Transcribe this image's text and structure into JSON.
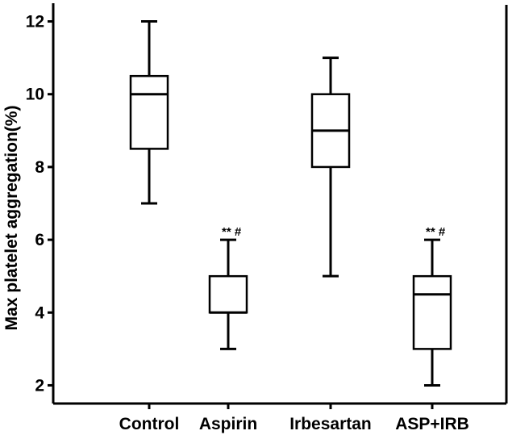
{
  "chart_data": {
    "type": "boxplot",
    "title": "",
    "xlabel": "",
    "ylabel": "Max platelet aggregation(%)",
    "ylim": [
      1.5,
      12.5
    ],
    "yticks": [
      2,
      4,
      6,
      8,
      10,
      12
    ],
    "grid": false,
    "legend": "none",
    "categories": [
      "Control",
      "Aspirin",
      "Irbesartan",
      "ASP+IRB"
    ],
    "boxes": [
      {
        "category": "Control",
        "min": 7,
        "q1": 8.5,
        "median": 10,
        "q3": 10.5,
        "max": 12,
        "annotation": ""
      },
      {
        "category": "Aspirin",
        "min": 3,
        "q1": 4,
        "median": 4,
        "q3": 5,
        "max": 6,
        "annotation": "**#"
      },
      {
        "category": "Irbesartan",
        "min": 5,
        "q1": 8,
        "median": 9,
        "q3": 10,
        "max": 11,
        "annotation": ""
      },
      {
        "category": "ASP+IRB",
        "min": 2,
        "q1": 3,
        "median": 4.5,
        "q3": 5,
        "max": 6,
        "annotation": "**#"
      }
    ]
  }
}
